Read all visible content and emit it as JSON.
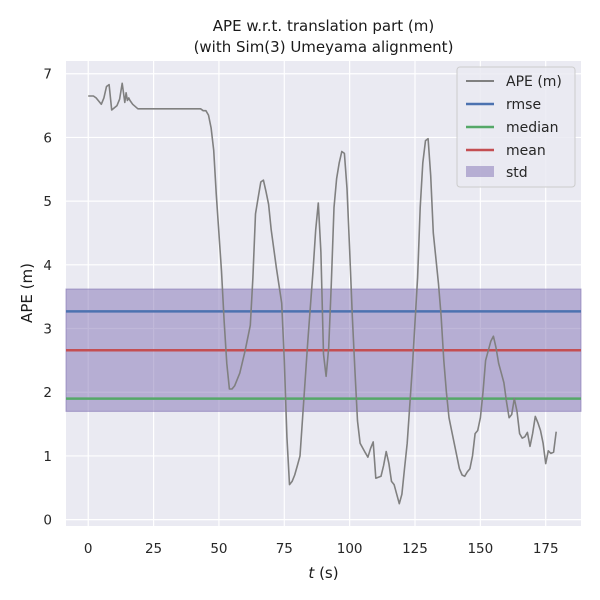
{
  "chart_data": {
    "type": "line",
    "title": "APE w.r.t. translation part (m)",
    "subtitle": "(with Sim(3) Umeyama alignment)",
    "xlabel_var": "t",
    "xlabel_unit": " (s)",
    "ylabel": "APE (m)",
    "xlim": [
      -8.5,
      188.5
    ],
    "ylim": [
      -0.1,
      7.2
    ],
    "xticks": [
      0,
      25,
      50,
      75,
      100,
      125,
      150,
      175
    ],
    "yticks": [
      0,
      1,
      2,
      3,
      4,
      5,
      6,
      7
    ],
    "grid": true,
    "legend_position": "top-right",
    "stats": {
      "rmse": 3.27,
      "median": 1.9,
      "mean": 2.66,
      "std_low": 1.7,
      "std_high": 3.62
    },
    "colors": {
      "ape": "#808080",
      "rmse": "#4c72b0",
      "median": "#55a868",
      "mean": "#c44e52",
      "std": "#8172b3",
      "background": "#eaeaf2",
      "grid": "#ffffff"
    },
    "legend": [
      "APE (m)",
      "rmse",
      "median",
      "mean",
      "std"
    ],
    "series": [
      {
        "name": "APE (m)",
        "x": [
          0,
          2,
          3,
          5,
          6,
          7,
          8,
          9,
          11,
          12,
          13,
          14,
          14.5,
          15,
          15.5,
          16,
          17,
          19,
          22,
          30,
          40,
          43,
          44,
          45,
          46,
          47,
          48,
          49,
          50,
          51,
          52,
          53,
          54,
          55,
          56,
          58,
          60,
          62,
          63,
          64,
          65,
          66,
          67,
          68,
          69,
          70,
          72,
          74,
          75,
          76,
          77,
          78,
          79,
          80,
          81,
          82,
          84,
          86,
          87,
          88,
          89,
          90,
          91,
          92,
          93,
          94,
          95,
          96,
          97,
          98,
          99,
          100,
          101,
          102,
          103,
          104,
          106,
          107,
          108,
          109,
          110,
          112,
          113,
          114,
          115,
          116,
          117,
          118,
          119,
          120,
          121,
          122,
          124,
          126,
          127,
          128,
          129,
          130,
          131,
          132,
          134,
          135,
          136,
          137,
          138,
          139,
          140,
          141,
          142,
          143,
          144,
          145,
          146,
          147,
          148,
          149,
          150,
          151,
          152,
          153,
          154,
          155,
          156,
          157,
          158,
          159,
          160,
          161,
          162,
          163,
          164,
          165,
          166,
          167,
          168,
          169,
          170,
          171,
          172,
          173,
          174,
          175,
          176,
          177,
          178,
          179
        ],
        "y": [
          6.65,
          6.65,
          6.62,
          6.52,
          6.62,
          6.8,
          6.83,
          6.43,
          6.5,
          6.6,
          6.85,
          6.55,
          6.7,
          6.58,
          6.62,
          6.58,
          6.52,
          6.45,
          6.45,
          6.45,
          6.45,
          6.45,
          6.42,
          6.42,
          6.35,
          6.15,
          5.8,
          5.1,
          4.5,
          3.9,
          3.1,
          2.45,
          2.05,
          2.05,
          2.1,
          2.3,
          2.65,
          3.05,
          3.8,
          4.8,
          5.05,
          5.3,
          5.33,
          5.15,
          4.95,
          4.55,
          3.95,
          3.4,
          2.5,
          1.3,
          0.55,
          0.6,
          0.7,
          0.85,
          1.0,
          1.6,
          2.8,
          3.9,
          4.55,
          4.97,
          4.2,
          2.6,
          2.25,
          2.7,
          3.7,
          4.9,
          5.35,
          5.6,
          5.78,
          5.75,
          5.2,
          4.25,
          3.2,
          2.35,
          1.55,
          1.2,
          1.05,
          0.98,
          1.12,
          1.22,
          0.65,
          0.68,
          0.85,
          1.07,
          0.88,
          0.6,
          0.55,
          0.4,
          0.25,
          0.4,
          0.8,
          1.2,
          2.4,
          3.8,
          4.9,
          5.6,
          5.95,
          5.98,
          5.4,
          4.5,
          3.7,
          3.2,
          2.5,
          2.0,
          1.6,
          1.4,
          1.2,
          1.0,
          0.8,
          0.7,
          0.68,
          0.75,
          0.8,
          1.0,
          1.35,
          1.4,
          1.6,
          2.0,
          2.5,
          2.65,
          2.8,
          2.88,
          2.7,
          2.45,
          2.3,
          2.15,
          1.85,
          1.6,
          1.65,
          1.9,
          1.7,
          1.35,
          1.28,
          1.3,
          1.37,
          1.15,
          1.35,
          1.62,
          1.52,
          1.4,
          1.2,
          0.88,
          1.08,
          1.04,
          1.06,
          1.38
        ]
      }
    ]
  }
}
